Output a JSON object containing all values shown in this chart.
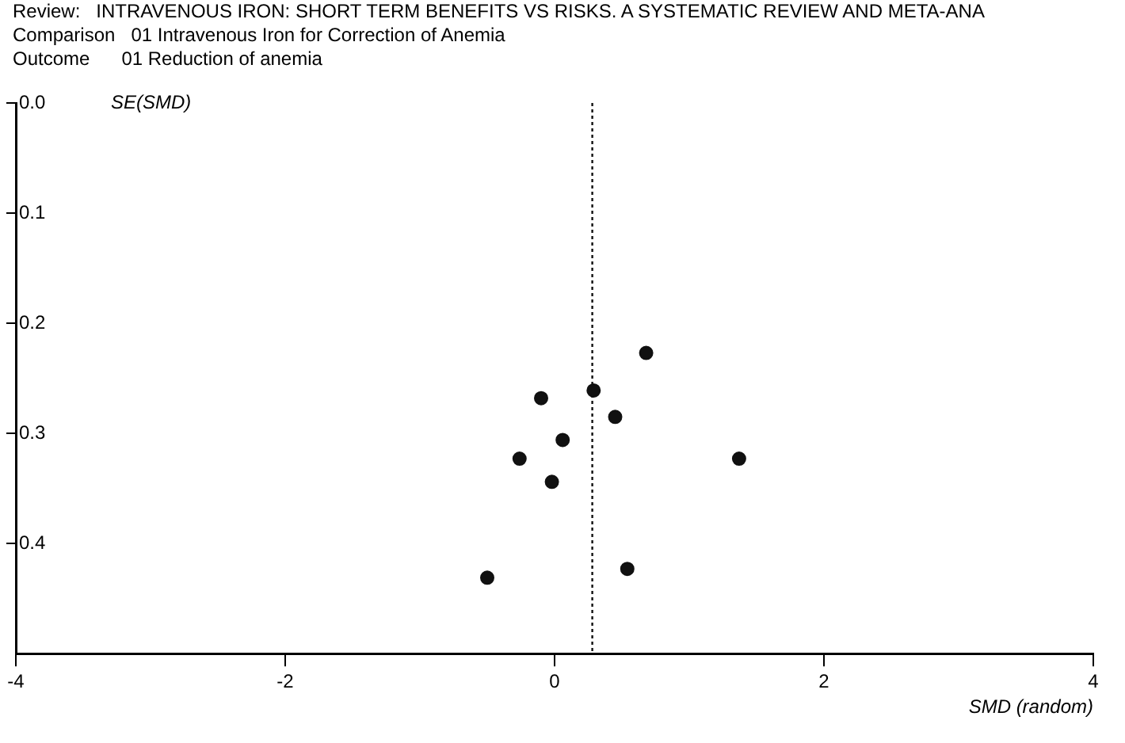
{
  "chart_data": {
    "type": "scatter",
    "title": "Review:   INTRAVENOUS IRON: SHORT TERM BENEFITS VS RISKS. A SYSTEMATIC REVIEW AND META-ANA",
    "annotations": [
      "Comparison   01 Intravenous Iron for Correction of Anemia",
      "Outcome      01 Reduction of anemia"
    ],
    "xlabel": "SMD (random)",
    "ylabel": "SE(SMD)",
    "x": [
      0.68,
      -0.1,
      0.29,
      0.45,
      0.06,
      -0.26,
      1.37,
      -0.02,
      0.54,
      -0.5
    ],
    "values": [
      0.227,
      0.268,
      0.261,
      0.285,
      0.306,
      0.323,
      0.323,
      0.344,
      0.423,
      0.431
    ],
    "color": "#111111",
    "marker": "circle",
    "xlim": [
      -4,
      4
    ],
    "xticks": [
      -4,
      -2,
      0,
      2,
      4
    ],
    "ylim": [
      0.5,
      0
    ],
    "yticks": [
      {
        "value": 0,
        "label": "0.0"
      },
      0.1,
      0.2,
      0.3,
      0.4
    ],
    "ref_lines": [
      {
        "axis": "x",
        "value": 0.28,
        "line_style": "dotted",
        "color": "#111111"
      }
    ],
    "grid": false,
    "legend": false
  }
}
